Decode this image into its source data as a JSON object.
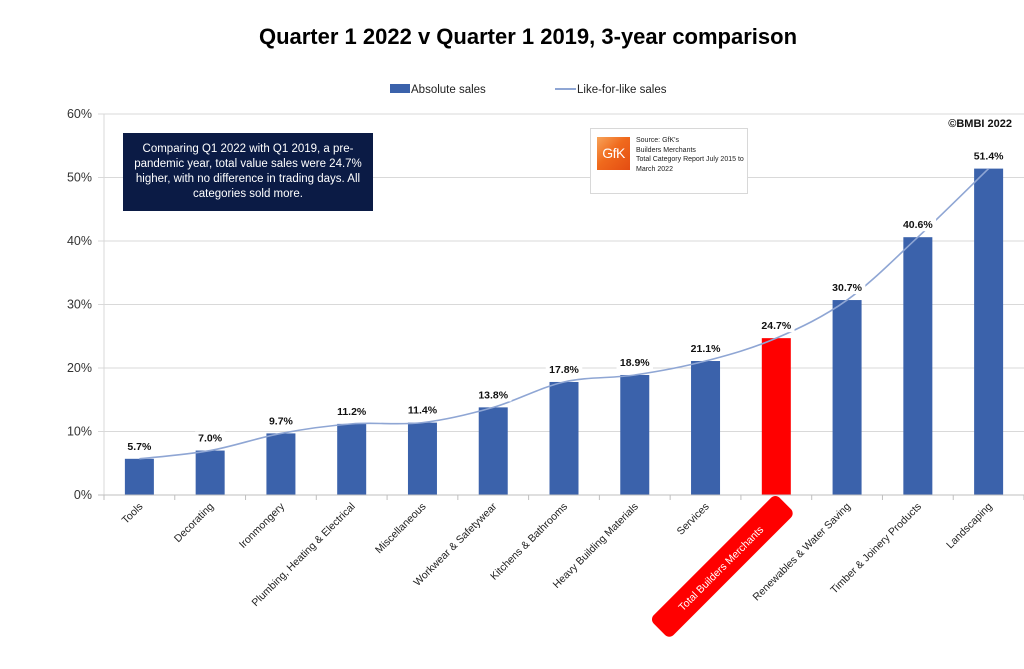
{
  "chart_data": {
    "type": "bar",
    "title": "Quarter 1 2022 v Quarter 1 2019, 3-year comparison",
    "xlabel": "",
    "ylabel": "",
    "ylim": [
      0,
      60
    ],
    "y_ticks": [
      "0%",
      "10%",
      "20%",
      "30%",
      "40%",
      "50%",
      "60%"
    ],
    "y_tick_values": [
      0,
      10,
      20,
      30,
      40,
      50,
      60
    ],
    "grid": true,
    "legend_position": "top-center",
    "categories": [
      "Tools",
      "Decorating",
      "Ironmongery",
      "Plumbing, Heating & Electrical",
      "Miscellaneous",
      "Workwear & Safetywear",
      "Kitchens & Bathrooms",
      "Heavy Building Materials",
      "Services",
      "Total Builders Merchants",
      "Renewables & Water Saving",
      "Timber & Joinery Products",
      "Landscaping"
    ],
    "series": [
      {
        "name": "Absolute sales",
        "kind": "bar",
        "color": "#3b62ab",
        "values": [
          5.7,
          7.0,
          9.7,
          11.2,
          11.4,
          13.8,
          17.8,
          18.9,
          21.1,
          24.7,
          30.7,
          40.6,
          51.4
        ]
      },
      {
        "name": "Like-for-like sales",
        "kind": "line",
        "color": "#8fa6d4",
        "values": [
          5.7,
          7.0,
          9.7,
          11.2,
          11.4,
          13.8,
          17.8,
          18.9,
          21.1,
          24.7,
          30.7,
          40.6,
          51.4
        ]
      }
    ],
    "data_labels": [
      "5.7%",
      "7.0%",
      "9.7%",
      "11.2%",
      "11.4%",
      "13.8%",
      "17.8%",
      "18.9%",
      "21.1%",
      "24.7%",
      "30.7%",
      "40.6%",
      "51.4%"
    ],
    "highlight_category": "Total Builders Merchants",
    "highlight_color": "#ff0000",
    "annotations": {
      "note": "Comparing Q1 2022 with Q1 2019, a pre-pandemic year, total value sales were 24.7% higher, with no difference in trading days. All categories sold more.",
      "source_logo": "GfK",
      "source_lines": [
        "Source: GfK's",
        "Builders Merchants",
        "Total Category Report July 2015 to",
        "March 2022"
      ],
      "copyright": "©BMBI 2022"
    }
  }
}
